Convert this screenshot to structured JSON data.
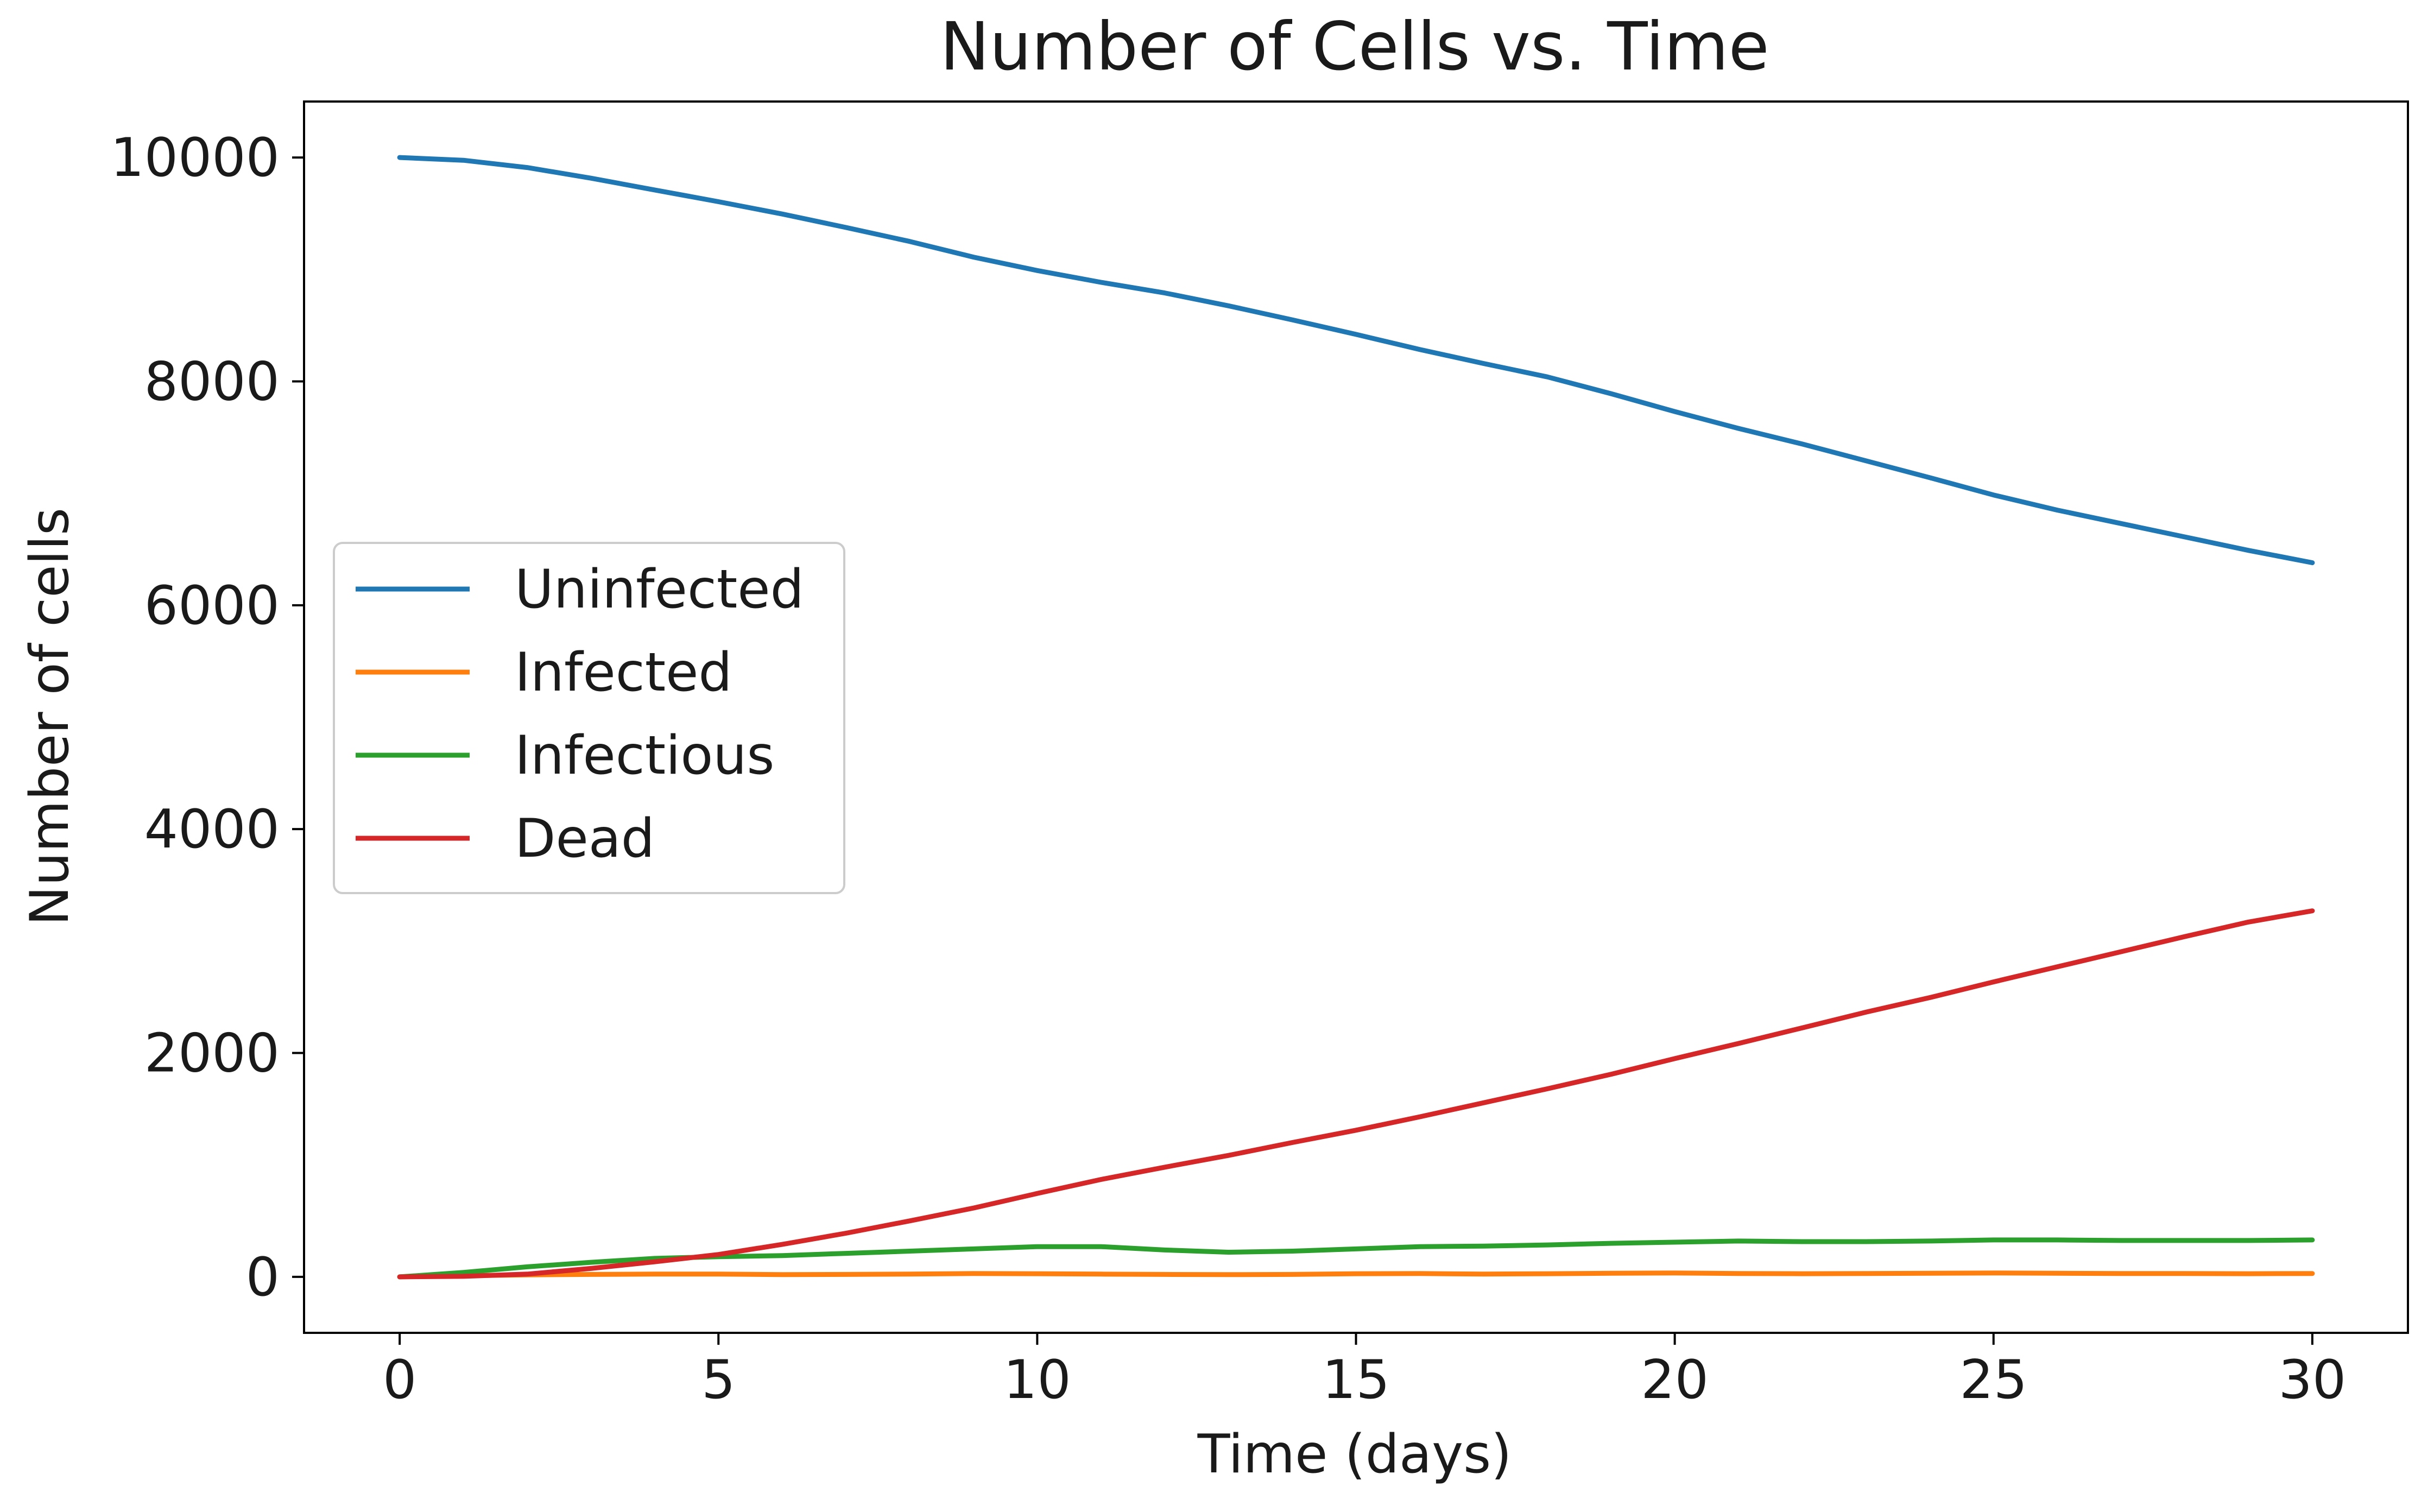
{
  "chart_data": {
    "type": "line",
    "title": "Number of Cells vs. Time",
    "xlabel": "Time (days)",
    "ylabel": "Number of cells",
    "xlim": [
      -1.5,
      31.5
    ],
    "ylim": [
      -500,
      10500
    ],
    "xticks": [
      0,
      5,
      10,
      15,
      20,
      25,
      30
    ],
    "yticks": [
      0,
      2000,
      4000,
      6000,
      8000,
      10000
    ],
    "grid": false,
    "legend_position": "center-left",
    "x": [
      0,
      1,
      2,
      3,
      4,
      5,
      6,
      7,
      8,
      9,
      10,
      11,
      12,
      13,
      14,
      15,
      16,
      17,
      18,
      19,
      20,
      21,
      22,
      23,
      24,
      25,
      26,
      27,
      28,
      29,
      30
    ],
    "series": [
      {
        "name": "Uninfected",
        "color": "#1f77b4",
        "values": [
          10000,
          9975,
          9910,
          9815,
          9710,
          9605,
          9495,
          9375,
          9250,
          9110,
          8990,
          8885,
          8790,
          8675,
          8550,
          8420,
          8285,
          8160,
          8040,
          7890,
          7730,
          7580,
          7440,
          7290,
          7140,
          6985,
          6850,
          6730,
          6610,
          6490,
          6380
        ]
      },
      {
        "name": "Infected",
        "color": "#ff7f0e",
        "values": [
          0,
          10,
          18,
          22,
          25,
          25,
          20,
          22,
          25,
          30,
          28,
          25,
          22,
          20,
          22,
          28,
          30,
          25,
          28,
          32,
          35,
          30,
          28,
          30,
          32,
          35,
          32,
          30,
          30,
          28,
          30
        ]
      },
      {
        "name": "Infectious",
        "color": "#2ca02c",
        "values": [
          0,
          40,
          90,
          130,
          165,
          180,
          190,
          210,
          230,
          250,
          270,
          270,
          240,
          220,
          230,
          250,
          270,
          275,
          285,
          300,
          310,
          320,
          315,
          315,
          320,
          330,
          330,
          325,
          325,
          325,
          330
        ]
      },
      {
        "name": "Dead",
        "color": "#d62728",
        "values": [
          0,
          5,
          25,
          75,
          135,
          200,
          290,
          390,
          500,
          615,
          745,
          870,
          980,
          1085,
          1200,
          1310,
          1430,
          1555,
          1680,
          1810,
          1950,
          2085,
          2225,
          2365,
          2495,
          2635,
          2770,
          2905,
          3040,
          3170,
          3270
        ]
      }
    ]
  }
}
